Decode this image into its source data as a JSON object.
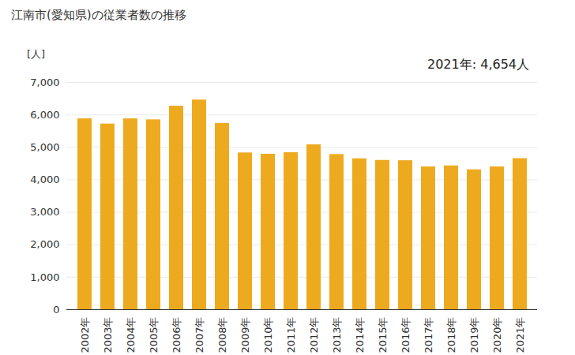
{
  "chart_data": {
    "type": "bar",
    "title": "江南市(愛知県)の従業者数の推移",
    "y_label": "[人]",
    "annotation": "2021年: 4,654人",
    "categories": [
      "2002年",
      "2003年",
      "2004年",
      "2005年",
      "2006年",
      "2007年",
      "2008年",
      "2009年",
      "2010年",
      "2011年",
      "2012年",
      "2013年",
      "2014年",
      "2015年",
      "2016年",
      "2017年",
      "2018年",
      "2019年",
      "2020年",
      "2021年"
    ],
    "values": [
      5880,
      5720,
      5880,
      5850,
      6270,
      6460,
      5740,
      4830,
      4790,
      4840,
      5080,
      4780,
      4650,
      4600,
      4590,
      4400,
      4430,
      4310,
      4400,
      4654
    ],
    "color": "#eeaa1f",
    "ylim": [
      0,
      7000
    ],
    "yticks": [
      0,
      {
        "value": 1000,
        "label": "1,000"
      },
      {
        "value": 2000,
        "label": "2,000"
      },
      {
        "value": 3000,
        "label": "3,000"
      },
      {
        "value": 4000,
        "label": "4,000"
      },
      {
        "value": 5000,
        "label": "5,000"
      },
      {
        "value": 6000,
        "label": "6,000"
      },
      {
        "value": 7000,
        "label": "7,000"
      }
    ],
    "grid": true
  }
}
